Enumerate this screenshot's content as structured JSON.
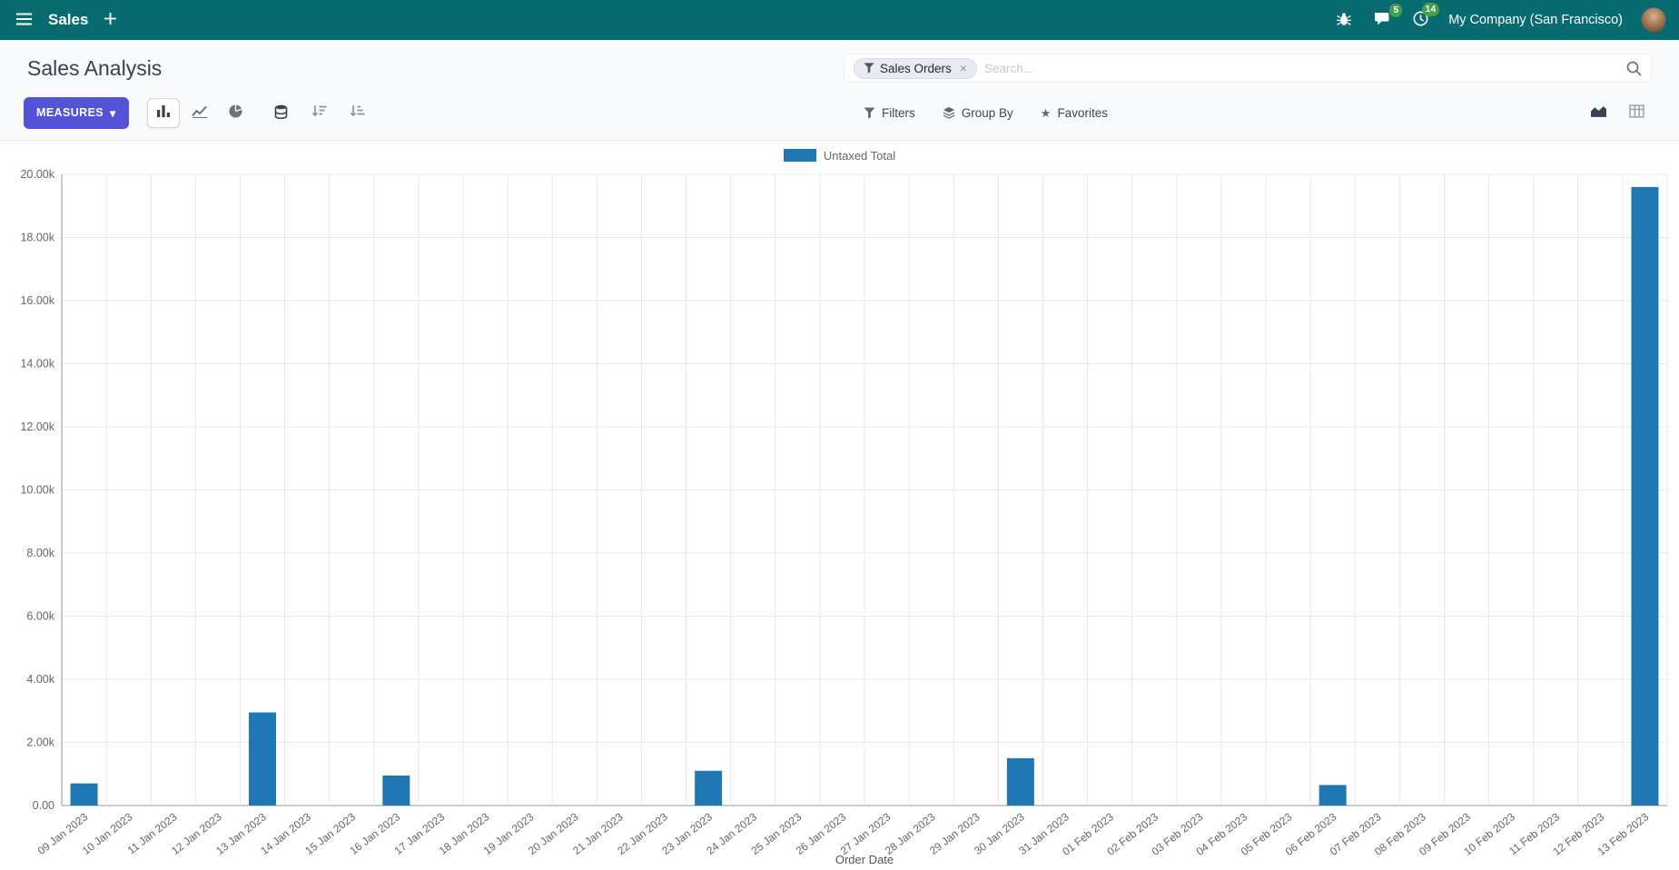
{
  "colors": {
    "navbar_bg": "#086b70",
    "primary": "#5452d6",
    "bar": "#1f77b4",
    "badge_green": "#43a047"
  },
  "icons": {
    "caret_down": "▾",
    "close": "×",
    "star": "★"
  },
  "navbar": {
    "app_label": "Sales",
    "company": "My Company (San Francisco)",
    "message_badge": "5",
    "activity_badge": "14"
  },
  "control_panel": {
    "title": "Sales Analysis",
    "measures_label": "MEASURES",
    "search": {
      "facet_label": "Sales Orders",
      "placeholder": "Search..."
    },
    "filters_label": "Filters",
    "groupby_label": "Group By",
    "favorites_label": "Favorites"
  },
  "chart_data": {
    "type": "bar",
    "title": "",
    "xlabel": "Order Date",
    "ylabel": "",
    "ylim": [
      0,
      20000
    ],
    "ytick_step": 2000,
    "ytick_labels": [
      "0.00",
      "2.00k",
      "4.00k",
      "6.00k",
      "8.00k",
      "10.00k",
      "12.00k",
      "14.00k",
      "16.00k",
      "18.00k",
      "20.00k"
    ],
    "grid": true,
    "legend_position": "top",
    "categories": [
      "09 Jan 2023",
      "10 Jan 2023",
      "11 Jan 2023",
      "12 Jan 2023",
      "13 Jan 2023",
      "14 Jan 2023",
      "15 Jan 2023",
      "16 Jan 2023",
      "17 Jan 2023",
      "18 Jan 2023",
      "19 Jan 2023",
      "20 Jan 2023",
      "21 Jan 2023",
      "22 Jan 2023",
      "23 Jan 2023",
      "24 Jan 2023",
      "25 Jan 2023",
      "26 Jan 2023",
      "27 Jan 2023",
      "28 Jan 2023",
      "29 Jan 2023",
      "30 Jan 2023",
      "31 Jan 2023",
      "01 Feb 2023",
      "02 Feb 2023",
      "03 Feb 2023",
      "04 Feb 2023",
      "05 Feb 2023",
      "06 Feb 2023",
      "07 Feb 2023",
      "08 Feb 2023",
      "09 Feb 2023",
      "10 Feb 2023",
      "11 Feb 2023",
      "12 Feb 2023",
      "13 Feb 2023"
    ],
    "series": [
      {
        "name": "Untaxed Total",
        "color": "#1f77b4",
        "values": [
          700,
          0,
          0,
          0,
          2950,
          0,
          0,
          950,
          0,
          0,
          0,
          0,
          0,
          0,
          1100,
          0,
          0,
          0,
          0,
          0,
          0,
          1500,
          0,
          0,
          0,
          0,
          0,
          0,
          650,
          0,
          0,
          0,
          0,
          0,
          0,
          19600
        ]
      }
    ]
  }
}
